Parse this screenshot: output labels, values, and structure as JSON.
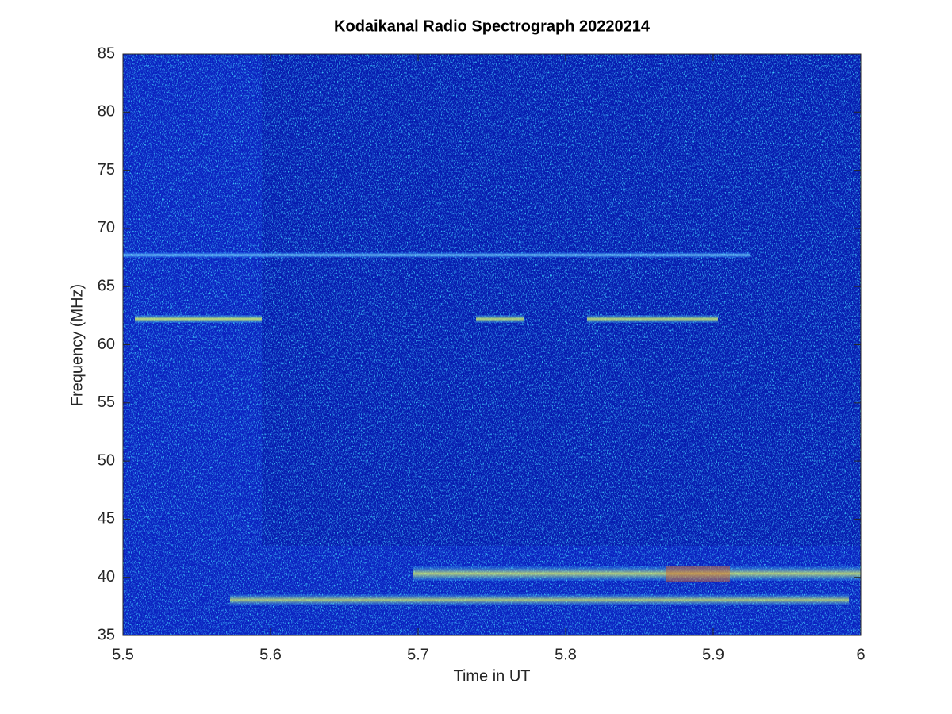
{
  "chart_data": {
    "type": "spectrogram",
    "title": "Kodaikanal Radio Spectrograph  20220214",
    "xlabel": "Time in UT",
    "ylabel": "Frequency (MHz)",
    "xlim": [
      5.5,
      6
    ],
    "xticks": [
      5.5,
      5.6,
      5.7,
      5.8,
      5.9,
      6
    ],
    "ylim": [
      35,
      85
    ],
    "yticks": [
      35,
      40,
      45,
      50,
      55,
      60,
      65,
      70,
      75,
      80,
      85
    ]
  }
}
